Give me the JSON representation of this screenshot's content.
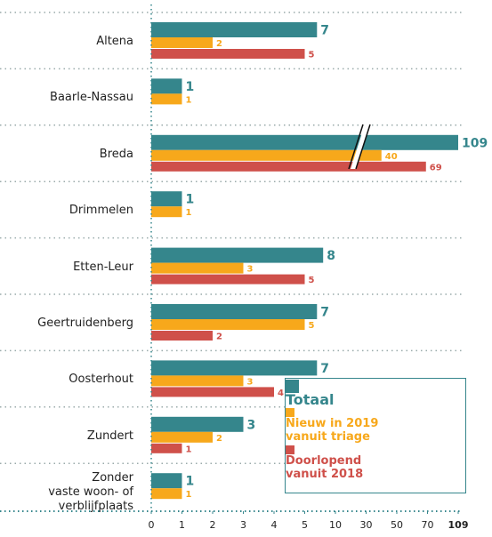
{
  "chart_data": {
    "type": "bar",
    "orientation": "horizontal",
    "categories": [
      "Altena",
      "Baarle-Nassau",
      "Breda",
      "Drimmelen",
      "Etten-Leur",
      "Geertruidenberg",
      "Oosterhout",
      "Zundert",
      "Zonder\nvaste woon- of\nverblijfplaats"
    ],
    "series": [
      {
        "name": "Totaal",
        "color": "#35868c",
        "values": [
          7,
          1,
          109,
          1,
          8,
          7,
          7,
          3,
          1
        ]
      },
      {
        "name": "Nieuw in 2019\nvanuit triage",
        "color": "#f7a81b",
        "values": [
          2,
          1,
          40,
          1,
          3,
          5,
          3,
          2,
          1
        ]
      },
      {
        "name": "Doorlopend\nvanuit 2018",
        "color": "#cf504a",
        "values": [
          5,
          null,
          69,
          null,
          5,
          2,
          4,
          1,
          null
        ]
      }
    ],
    "xlim": [
      0,
      109
    ],
    "xticks": [
      0,
      1,
      2,
      3,
      4,
      5,
      10,
      30,
      50,
      70,
      109
    ],
    "legend": "lower right"
  }
}
